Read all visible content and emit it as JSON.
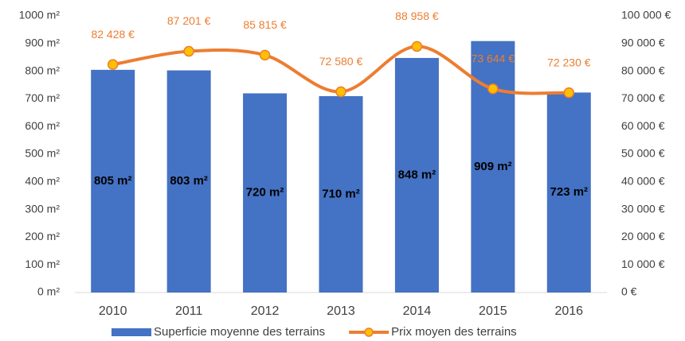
{
  "chart_data": {
    "type": "combo",
    "categories": [
      "2010",
      "2011",
      "2012",
      "2013",
      "2014",
      "2015",
      "2016"
    ],
    "series": [
      {
        "name": "Superficie moyenne des terrains",
        "type": "bar",
        "color": "#4472c4",
        "values": [
          805,
          803,
          720,
          710,
          848,
          909,
          723
        ],
        "value_labels": [
          "805 m²",
          "803 m²",
          "720 m²",
          "710 m²",
          "848 m²",
          "909 m²",
          "723 m²"
        ]
      },
      {
        "name": "Prix moyen des terrains",
        "type": "line",
        "axis": "y2",
        "color": "#ed7d31",
        "marker_color": "#ffc000",
        "values": [
          82428,
          87201,
          85815,
          72580,
          88958,
          73644,
          72230
        ],
        "value_labels": [
          "82 428 €",
          "87 201 €",
          "85 815 €",
          "72 580 €",
          "88 958 €",
          "73 644 €",
          "72 230 €"
        ]
      }
    ],
    "ylim": [
      0,
      1000
    ],
    "yticks": [
      {
        "value": 0,
        "label": "0 m²"
      },
      {
        "value": 100,
        "label": "100 m²"
      },
      {
        "value": 200,
        "label": "200 m²"
      },
      {
        "value": 300,
        "label": "300 m²"
      },
      {
        "value": 400,
        "label": "400 m²"
      },
      {
        "value": 500,
        "label": "500 m²"
      },
      {
        "value": 600,
        "label": "600 m²"
      },
      {
        "value": 700,
        "label": "700 m²"
      },
      {
        "value": 800,
        "label": "800 m²"
      },
      {
        "value": 900,
        "label": "900 m²"
      },
      {
        "value": 1000,
        "label": "1000 m²"
      }
    ],
    "y2lim": [
      0,
      100000
    ],
    "y2ticks": [
      {
        "value": 0,
        "label": "0 €"
      },
      {
        "value": 10000,
        "label": "10 000 €"
      },
      {
        "value": 20000,
        "label": "20 000 €"
      },
      {
        "value": 30000,
        "label": "30 000 €"
      },
      {
        "value": 40000,
        "label": "40 000 €"
      },
      {
        "value": 50000,
        "label": "50 000 €"
      },
      {
        "value": 60000,
        "label": "60 000 €"
      },
      {
        "value": 70000,
        "label": "70 000 €"
      },
      {
        "value": 80000,
        "label": "80 000 €"
      },
      {
        "value": 90000,
        "label": "90 000 €"
      },
      {
        "value": 100000,
        "label": "100 000 €"
      }
    ],
    "grid": false,
    "legend": "bottom"
  }
}
